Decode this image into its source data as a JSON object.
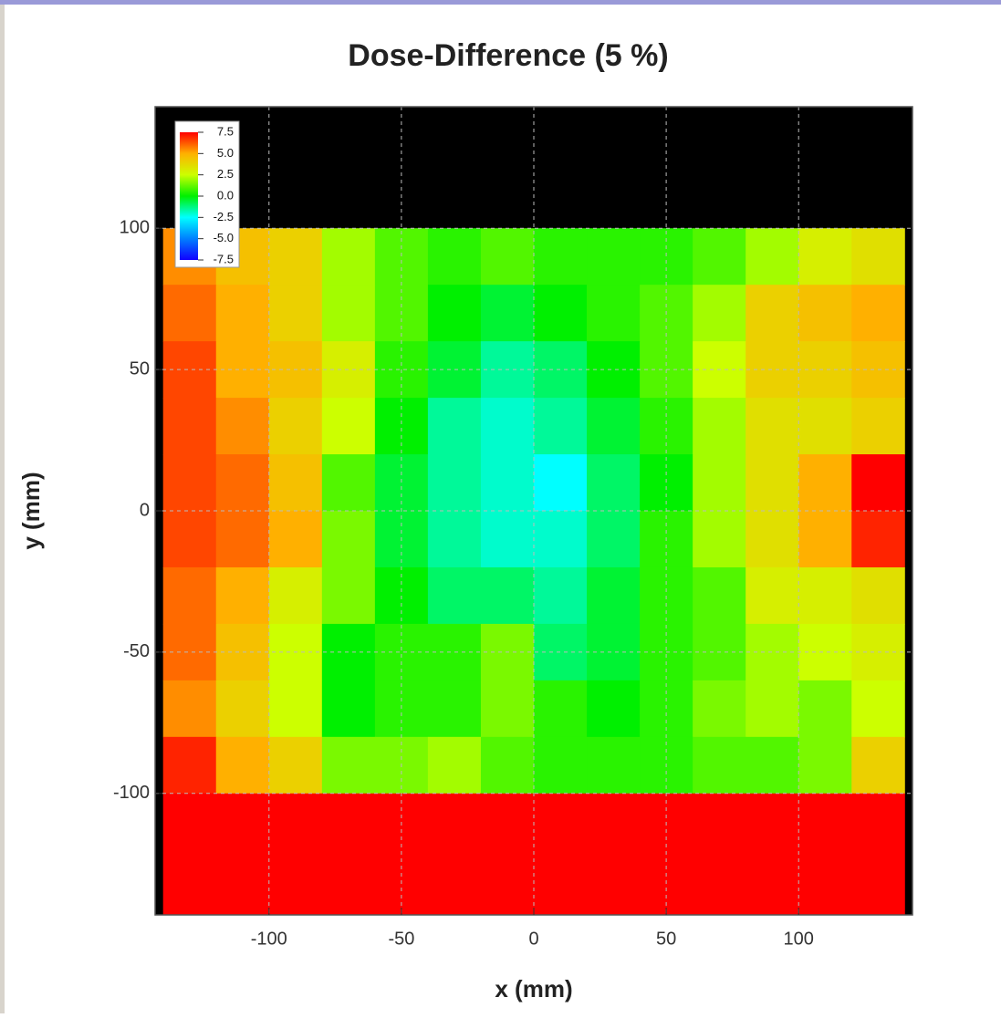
{
  "chart_data": {
    "type": "heatmap",
    "title": "Dose-Difference (5 %)",
    "x_label": "x (mm)",
    "y_label": "y (mm)",
    "xlim": [
      -143,
      143
    ],
    "ylim": [
      -143,
      143
    ],
    "xticks": [
      -100,
      -50,
      0,
      50,
      100
    ],
    "yticks": [
      100,
      50,
      0,
      -50,
      -100
    ],
    "grid": true,
    "x_edges": [
      -140,
      -120,
      -100,
      -80,
      -60,
      -40,
      -20,
      0,
      20,
      40,
      60,
      80,
      100,
      120,
      140
    ],
    "y_edges": [
      143,
      100,
      80,
      60,
      40,
      20,
      0,
      -20,
      -40,
      -60,
      -80,
      -100,
      -143
    ],
    "values": [
      [
        null,
        null,
        null,
        null,
        null,
        null,
        null,
        null,
        null,
        null,
        null,
        null,
        null,
        null
      ],
      [
        5.5,
        4.5,
        4,
        2,
        1,
        0.5,
        1,
        0.5,
        0.5,
        0.5,
        1,
        2,
        3,
        3.5
      ],
      [
        6,
        5,
        4,
        2,
        1,
        0,
        -0.5,
        0,
        0.5,
        1,
        2,
        4,
        4.5,
        5
      ],
      [
        6.5,
        5,
        4.5,
        3,
        0.5,
        -0.5,
        -1.5,
        -1,
        0,
        1,
        2.5,
        4,
        4,
        4.5
      ],
      [
        6.5,
        5.5,
        4,
        2.5,
        0,
        -1.5,
        -2,
        -1.5,
        -0.5,
        0.5,
        2,
        3.5,
        3.5,
        4
      ],
      [
        6.5,
        6,
        4.5,
        1,
        -0.5,
        -1.5,
        -2,
        -2.5,
        -1,
        0,
        2,
        3.5,
        5,
        7.5
      ],
      [
        6.5,
        6,
        5,
        1.5,
        -0.5,
        -1.5,
        -2,
        -2,
        -1,
        0.5,
        2,
        3.5,
        5,
        7
      ],
      [
        6,
        5,
        3,
        1.5,
        0,
        -1,
        -1,
        -1.5,
        -0.5,
        0.5,
        1,
        3,
        3,
        3.5
      ],
      [
        6,
        4.5,
        2.5,
        0,
        0.5,
        0.5,
        1.5,
        -1,
        -0.5,
        0.5,
        1,
        2,
        2.5,
        3
      ],
      [
        5.5,
        4,
        2.5,
        0,
        0.5,
        0.5,
        1.5,
        0.5,
        0,
        0.5,
        1.5,
        2,
        1.5,
        2.5
      ],
      [
        7,
        5,
        4,
        1.5,
        1.5,
        2,
        1,
        0.5,
        0.5,
        0.5,
        1,
        1,
        1.5,
        4
      ],
      [
        7.5,
        7.5,
        7.5,
        7.5,
        7.5,
        7.5,
        7.5,
        7.5,
        7.5,
        7.5,
        7.5,
        7.5,
        7.5,
        7.5
      ]
    ],
    "clim": [
      -7.5,
      7.5
    ],
    "colors": [
      "#1000ff",
      "#0080ff",
      "#00ffff",
      "#00f000",
      "#ccff00",
      "#ffb000",
      "#ff0000"
    ],
    "colorbar_ticks": [
      {
        "value": 7.5,
        "label": "7.5"
      },
      {
        "value": 5,
        "label": "5.0"
      },
      {
        "value": 2.5,
        "label": "2.5"
      },
      {
        "value": 0,
        "label": "0.0"
      },
      {
        "value": -2.5,
        "label": "-2.5"
      },
      {
        "value": -5,
        "label": "-5.0"
      },
      {
        "value": -7.5,
        "label": "-7.5"
      }
    ]
  }
}
